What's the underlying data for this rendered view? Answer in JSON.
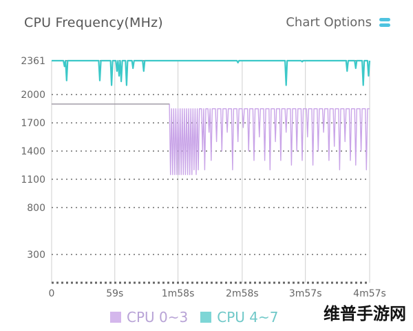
{
  "header": {
    "title": "CPU Frequency(MHz)",
    "options_label": "Chart Options",
    "options_icon": "toggle-lines-icon"
  },
  "legend": {
    "items": [
      {
        "label": "CPU 0~3",
        "color": "#d4b7ec"
      },
      {
        "label": "CPU 4~7",
        "color": "#7ed6d6"
      }
    ]
  },
  "watermark": "维普手游网",
  "chart_data": {
    "type": "line",
    "title": "CPU Frequency(MHz)",
    "xlabel": "",
    "ylabel": "",
    "x_ticks": [
      "0",
      "59s",
      "1m58s",
      "2m58s",
      "3m57s",
      "4m57s"
    ],
    "x_tick_seconds": [
      0,
      59,
      118,
      178,
      237,
      297
    ],
    "xlim": [
      0,
      297
    ],
    "y_ticks": [
      300,
      800,
      1100,
      1400,
      1700,
      2000,
      2361
    ],
    "ylim": [
      0,
      2361
    ],
    "grid": true,
    "legend_position": "bottom",
    "colors": {
      "cpu_0_3": "#c9a4e8",
      "cpu_4_7": "#3cc8c8",
      "grid": "#777777",
      "axis": "#cfcfcf"
    },
    "series": [
      {
        "name": "CPU 4~7",
        "points": [
          [
            0,
            2361
          ],
          [
            11,
            2361
          ],
          [
            12,
            2300
          ],
          [
            13,
            2361
          ],
          [
            14,
            2150
          ],
          [
            15,
            2361
          ],
          [
            44,
            2361
          ],
          [
            45,
            2150
          ],
          [
            46,
            2361
          ],
          [
            52,
            2361
          ],
          [
            53,
            2361
          ],
          [
            55,
            2361
          ],
          [
            56,
            2100
          ],
          [
            57,
            2361
          ],
          [
            60,
            2361
          ],
          [
            61,
            2250
          ],
          [
            62,
            2361
          ],
          [
            63,
            2200
          ],
          [
            64,
            2361
          ],
          [
            65,
            2140
          ],
          [
            66,
            2361
          ],
          [
            69,
            2361
          ],
          [
            70,
            2100
          ],
          [
            71,
            2361
          ],
          [
            75,
            2361
          ],
          [
            76,
            2280
          ],
          [
            77,
            2361
          ],
          [
            85,
            2361
          ],
          [
            86,
            2250
          ],
          [
            87,
            2361
          ],
          [
            173,
            2361
          ],
          [
            174,
            2340
          ],
          [
            175,
            2361
          ],
          [
            218,
            2361
          ],
          [
            219,
            2100
          ],
          [
            220,
            2361
          ],
          [
            233,
            2361
          ],
          [
            234,
            2350
          ],
          [
            235,
            2361
          ],
          [
            275,
            2361
          ],
          [
            276,
            2250
          ],
          [
            277,
            2361
          ],
          [
            283,
            2361
          ],
          [
            284,
            2280
          ],
          [
            285,
            2361
          ],
          [
            290,
            2361
          ],
          [
            291,
            2100
          ],
          [
            292,
            2361
          ],
          [
            295,
            2361
          ],
          [
            296,
            2200
          ],
          [
            297,
            2361
          ]
        ]
      },
      {
        "name": "CPU 0~3",
        "points": [
          [
            0,
            1900
          ],
          [
            110,
            1900
          ],
          [
            111,
            1150
          ],
          [
            112,
            1850
          ],
          [
            113,
            1150
          ],
          [
            114,
            1850
          ],
          [
            115,
            1150
          ],
          [
            116,
            1850
          ],
          [
            117,
            1150
          ],
          [
            118,
            1850
          ],
          [
            119,
            1150
          ],
          [
            120,
            1850
          ],
          [
            121,
            1150
          ],
          [
            122,
            1850
          ],
          [
            123,
            1150
          ],
          [
            124,
            1850
          ],
          [
            125,
            1150
          ],
          [
            126,
            1850
          ],
          [
            127,
            1150
          ],
          [
            128,
            1850
          ],
          [
            129,
            1150
          ],
          [
            130,
            1850
          ],
          [
            131,
            1150
          ],
          [
            132,
            1850
          ],
          [
            133,
            1200
          ],
          [
            134,
            1850
          ],
          [
            135,
            1150
          ],
          [
            136,
            1850
          ],
          [
            137,
            1200
          ],
          [
            138,
            1850
          ],
          [
            140,
            1850
          ],
          [
            141,
            1400
          ],
          [
            142,
            1850
          ],
          [
            143,
            1200
          ],
          [
            144,
            1850
          ],
          [
            146,
            1850
          ],
          [
            147,
            1600
          ],
          [
            148,
            1850
          ],
          [
            149,
            1300
          ],
          [
            150,
            1850
          ],
          [
            153,
            1850
          ],
          [
            154,
            1500
          ],
          [
            155,
            1850
          ],
          [
            158,
            1850
          ],
          [
            159,
            1400
          ],
          [
            160,
            1850
          ],
          [
            163,
            1850
          ],
          [
            164,
            1600
          ],
          [
            165,
            1850
          ],
          [
            168,
            1850
          ],
          [
            169,
            1200
          ],
          [
            170,
            1850
          ],
          [
            173,
            1850
          ],
          [
            174,
            1500
          ],
          [
            175,
            1850
          ],
          [
            178,
            1850
          ],
          [
            179,
            1650
          ],
          [
            180,
            1850
          ],
          [
            183,
            1850
          ],
          [
            184,
            1400
          ],
          [
            185,
            1850
          ],
          [
            188,
            1850
          ],
          [
            189,
            1300
          ],
          [
            190,
            1850
          ],
          [
            193,
            1850
          ],
          [
            194,
            1550
          ],
          [
            195,
            1850
          ],
          [
            198,
            1850
          ],
          [
            199,
            1300
          ],
          [
            200,
            1850
          ],
          [
            203,
            1850
          ],
          [
            204,
            1200
          ],
          [
            205,
            1850
          ],
          [
            208,
            1850
          ],
          [
            209,
            1500
          ],
          [
            210,
            1850
          ],
          [
            213,
            1850
          ],
          [
            214,
            1300
          ],
          [
            215,
            1850
          ],
          [
            218,
            1850
          ],
          [
            219,
            1600
          ],
          [
            220,
            1850
          ],
          [
            223,
            1850
          ],
          [
            224,
            1250
          ],
          [
            225,
            1850
          ],
          [
            228,
            1850
          ],
          [
            229,
            1400
          ],
          [
            230,
            1850
          ],
          [
            233,
            1850
          ],
          [
            234,
            1300
          ],
          [
            235,
            1850
          ],
          [
            238,
            1850
          ],
          [
            239,
            1550
          ],
          [
            240,
            1850
          ],
          [
            243,
            1850
          ],
          [
            244,
            1250
          ],
          [
            245,
            1850
          ],
          [
            248,
            1850
          ],
          [
            249,
            1400
          ],
          [
            250,
            1850
          ],
          [
            253,
            1850
          ],
          [
            254,
            1600
          ],
          [
            255,
            1850
          ],
          [
            258,
            1850
          ],
          [
            259,
            1300
          ],
          [
            260,
            1850
          ],
          [
            263,
            1850
          ],
          [
            264,
            1450
          ],
          [
            265,
            1850
          ],
          [
            268,
            1850
          ],
          [
            269,
            1200
          ],
          [
            270,
            1850
          ],
          [
            273,
            1850
          ],
          [
            274,
            1500
          ],
          [
            275,
            1850
          ],
          [
            278,
            1850
          ],
          [
            279,
            1300
          ],
          [
            280,
            1850
          ],
          [
            283,
            1850
          ],
          [
            284,
            1250
          ],
          [
            285,
            1850
          ],
          [
            288,
            1850
          ],
          [
            289,
            1400
          ],
          [
            290,
            1850
          ],
          [
            293,
            1850
          ],
          [
            294,
            1200
          ],
          [
            295,
            1850
          ],
          [
            297,
            1850
          ]
        ]
      }
    ]
  }
}
